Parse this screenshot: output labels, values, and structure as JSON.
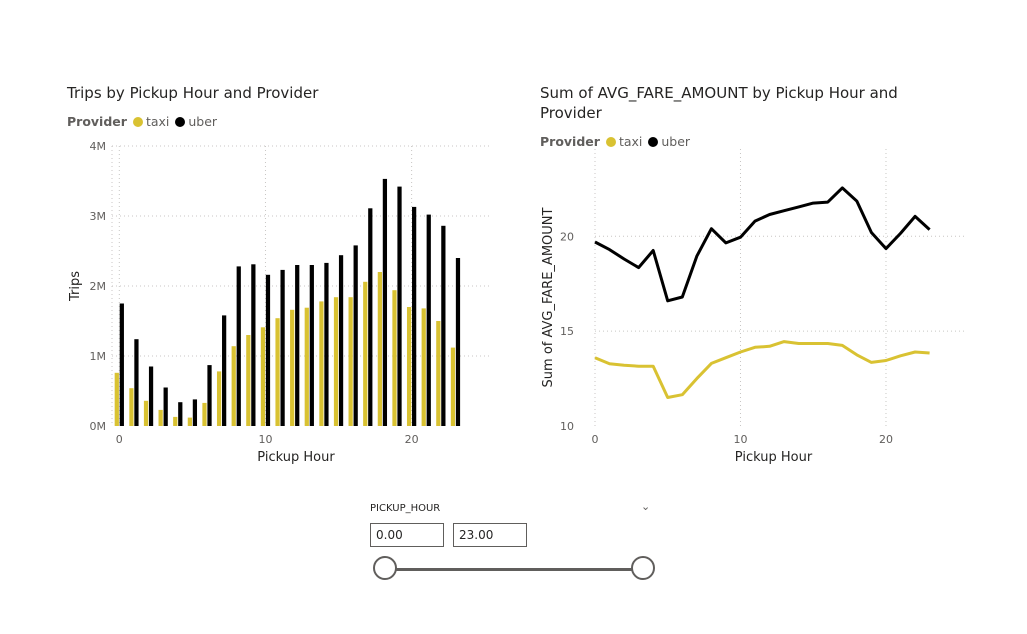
{
  "colors": {
    "taxi": "#d9c232",
    "uber": "#000000"
  },
  "chart_data": [
    {
      "type": "bar",
      "title": "Trips by Pickup Hour and Provider",
      "legend_title": "Provider",
      "legend_position": "top-left",
      "xlabel": "Pickup Hour",
      "ylabel": "Trips",
      "xlim": [
        -0.5,
        25.5
      ],
      "ylim": [
        0,
        4000000
      ],
      "x_ticks": [
        0,
        10,
        20
      ],
      "y_ticks": [
        0,
        1000000,
        2000000,
        3000000,
        4000000
      ],
      "y_tick_labels": [
        "0M",
        "1M",
        "2M",
        "3M",
        "4M"
      ],
      "grid": true,
      "x": [
        0,
        1,
        2,
        3,
        4,
        5,
        6,
        7,
        8,
        9,
        10,
        11,
        12,
        13,
        14,
        15,
        16,
        17,
        18,
        19,
        20,
        21,
        22,
        23
      ],
      "series": [
        {
          "name": "taxi",
          "values": [
            760000,
            540000,
            360000,
            230000,
            130000,
            120000,
            330000,
            780000,
            1140000,
            1300000,
            1410000,
            1540000,
            1660000,
            1690000,
            1780000,
            1840000,
            1840000,
            2060000,
            2200000,
            1940000,
            1700000,
            1680000,
            1500000,
            1120000
          ]
        },
        {
          "name": "uber",
          "values": [
            1750000,
            1240000,
            850000,
            550000,
            340000,
            380000,
            870000,
            1580000,
            2280000,
            2310000,
            2160000,
            2230000,
            2300000,
            2300000,
            2330000,
            2440000,
            2580000,
            3110000,
            3530000,
            3420000,
            3130000,
            3020000,
            2860000,
            2400000
          ]
        }
      ]
    },
    {
      "type": "line",
      "title": "Sum of AVG_FARE_AMOUNT by Pickup Hour and Provider",
      "legend_title": "Provider",
      "legend_position": "top-left",
      "xlabel": "Pickup Hour",
      "ylabel": "Sum of AVG_FARE_AMOUNT",
      "xlim": [
        0,
        25.5
      ],
      "ylim": [
        10,
        24.6
      ],
      "x_ticks": [
        0,
        10,
        20
      ],
      "y_ticks": [
        10,
        15,
        20
      ],
      "grid": true,
      "x": [
        0,
        1,
        2,
        3,
        4,
        5,
        6,
        7,
        8,
        9,
        10,
        11,
        12,
        13,
        14,
        15,
        16,
        17,
        18,
        19,
        20,
        21,
        22,
        23
      ],
      "series": [
        {
          "name": "taxi",
          "values": [
            13.6,
            13.28,
            13.2,
            13.15,
            13.15,
            11.5,
            11.65,
            12.5,
            13.3,
            13.6,
            13.9,
            14.15,
            14.2,
            14.45,
            14.35,
            14.35,
            14.35,
            14.25,
            13.75,
            13.35,
            13.45,
            13.7,
            13.9,
            13.85
          ]
        },
        {
          "name": "uber",
          "values": [
            19.7,
            19.3,
            18.8,
            18.35,
            19.25,
            16.6,
            16.8,
            18.95,
            20.4,
            19.65,
            19.95,
            20.8,
            21.15,
            21.35,
            21.55,
            21.75,
            21.8,
            22.55,
            21.85,
            20.2,
            19.35,
            20.15,
            21.05,
            20.35
          ]
        }
      ]
    }
  ],
  "slicer": {
    "label": "PICKUP_HOUR",
    "min_value": "0.00",
    "max_value": "23.00",
    "range": [
      0,
      23
    ],
    "dropdown_icon": "chevron-down-icon"
  }
}
